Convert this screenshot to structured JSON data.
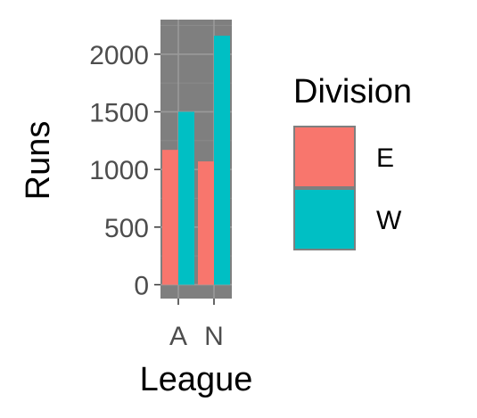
{
  "chart_data": {
    "type": "bar",
    "categories": [
      "A",
      "N"
    ],
    "series": [
      {
        "name": "E",
        "values": [
          1170,
          1070
        ],
        "color": "#F8766D"
      },
      {
        "name": "W",
        "values": [
          1500,
          2160
        ],
        "color": "#00BFC4"
      }
    ],
    "xlabel": "League",
    "ylabel": "Runs",
    "ylim": [
      -120,
      2300
    ],
    "yticks": [
      0,
      500,
      1000,
      1500,
      2000
    ],
    "grid": true,
    "panel_background": "#7f7f7f",
    "legend": {
      "title": "Division",
      "position": "right"
    }
  }
}
